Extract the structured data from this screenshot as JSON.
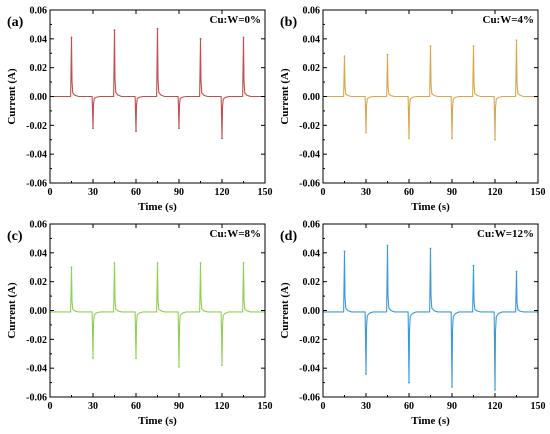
{
  "chart_data": [
    {
      "type": "line",
      "panel_label": "(a)",
      "annotation": "Cu:W=0%",
      "xlabel": "Time (s)",
      "ylabel": "Current (A)",
      "xlim": [
        0,
        150
      ],
      "ylim": [
        -0.06,
        0.06
      ],
      "xticks": [
        0,
        30,
        60,
        90,
        120,
        150
      ],
      "yticks": [
        -0.06,
        -0.04,
        -0.02,
        0.0,
        0.02,
        0.04,
        0.06
      ],
      "ytick_labels": [
        "-0.06",
        "-0.04",
        "-0.02",
        "0.00",
        "0.02",
        "0.04",
        "0.06"
      ],
      "color": "#c0504d",
      "baseline": 0.0,
      "spikes": [
        {
          "x": 15,
          "y": 0.041
        },
        {
          "x": 30,
          "y": -0.022
        },
        {
          "x": 45,
          "y": 0.046
        },
        {
          "x": 60,
          "y": -0.024
        },
        {
          "x": 75,
          "y": 0.047
        },
        {
          "x": 90,
          "y": -0.022
        },
        {
          "x": 105,
          "y": 0.04
        },
        {
          "x": 120,
          "y": -0.029
        },
        {
          "x": 135,
          "y": 0.041
        }
      ]
    },
    {
      "type": "line",
      "panel_label": "(b)",
      "annotation": "Cu:W=4%",
      "xlabel": "Time (s)",
      "ylabel": "Current (A)",
      "xlim": [
        0,
        150
      ],
      "ylim": [
        -0.06,
        0.06
      ],
      "xticks": [
        0,
        30,
        60,
        90,
        120,
        150
      ],
      "yticks": [
        -0.06,
        -0.04,
        -0.02,
        0.0,
        0.02,
        0.04,
        0.06
      ],
      "ytick_labels": [
        "-0.06",
        "-0.04",
        "-0.02",
        "0.00",
        "0.02",
        "0.04",
        "0.06"
      ],
      "color": "#d9a650",
      "baseline": 0.0,
      "spikes": [
        {
          "x": 15,
          "y": 0.028
        },
        {
          "x": 30,
          "y": -0.025
        },
        {
          "x": 45,
          "y": 0.029
        },
        {
          "x": 60,
          "y": -0.029
        },
        {
          "x": 75,
          "y": 0.035
        },
        {
          "x": 90,
          "y": -0.029
        },
        {
          "x": 105,
          "y": 0.035
        },
        {
          "x": 120,
          "y": -0.03
        },
        {
          "x": 135,
          "y": 0.039
        }
      ]
    },
    {
      "type": "line",
      "panel_label": "(c)",
      "annotation": "Cu:W=8%",
      "xlabel": "Time (s)",
      "ylabel": "Current (A)",
      "xlim": [
        0,
        150
      ],
      "ylim": [
        -0.06,
        0.06
      ],
      "xticks": [
        0,
        30,
        60,
        90,
        120,
        150
      ],
      "yticks": [
        -0.06,
        -0.04,
        -0.02,
        0.0,
        0.02,
        0.04,
        0.06
      ],
      "ytick_labels": [
        "-0.06",
        "-0.04",
        "-0.02",
        "0.00",
        "0.02",
        "0.04",
        "0.06"
      ],
      "color": "#8fd14f",
      "baseline": -0.001,
      "spikes": [
        {
          "x": 15,
          "y": 0.03
        },
        {
          "x": 30,
          "y": -0.033
        },
        {
          "x": 45,
          "y": 0.033
        },
        {
          "x": 60,
          "y": -0.033
        },
        {
          "x": 75,
          "y": 0.033
        },
        {
          "x": 90,
          "y": -0.039
        },
        {
          "x": 105,
          "y": 0.033
        },
        {
          "x": 120,
          "y": -0.038
        },
        {
          "x": 135,
          "y": 0.033
        }
      ]
    },
    {
      "type": "line",
      "panel_label": "(d)",
      "annotation": "Cu:W=12%",
      "xlabel": "Time (s)",
      "ylabel": "Current (A)",
      "xlim": [
        0,
        150
      ],
      "ylim": [
        -0.06,
        0.06
      ],
      "xticks": [
        0,
        30,
        60,
        90,
        120,
        150
      ],
      "yticks": [
        -0.06,
        -0.04,
        -0.02,
        0.0,
        0.02,
        0.04,
        0.06
      ],
      "ytick_labels": [
        "-0.06",
        "-0.04",
        "-0.02",
        "0.00",
        "0.02",
        "0.04",
        "0.06"
      ],
      "color": "#3a9ad9",
      "baseline": -0.001,
      "spikes": [
        {
          "x": 15,
          "y": 0.041
        },
        {
          "x": 30,
          "y": -0.044
        },
        {
          "x": 45,
          "y": 0.045
        },
        {
          "x": 60,
          "y": -0.05
        },
        {
          "x": 75,
          "y": 0.043
        },
        {
          "x": 90,
          "y": -0.053
        },
        {
          "x": 105,
          "y": 0.031
        },
        {
          "x": 120,
          "y": -0.055
        },
        {
          "x": 135,
          "y": 0.027
        }
      ]
    }
  ]
}
